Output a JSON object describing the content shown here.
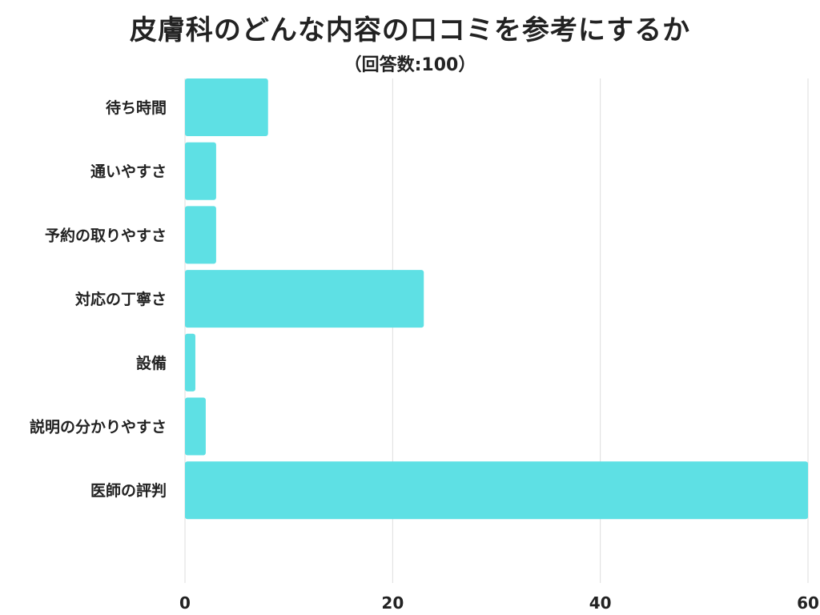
{
  "title": "皮膚科のどんな内容の口コミを参考にするか",
  "subtitle": "（回答数:100）",
  "colors": {
    "bar": "#5ee0e4",
    "grid": "#dddddd",
    "text": "#222222"
  },
  "chart_data": {
    "type": "bar",
    "orientation": "horizontal",
    "categories": [
      "待ち時間",
      "通いやすさ",
      "予約の取りやすさ",
      "対応の丁寧さ",
      "設備",
      "説明の分かりやすさ",
      "医師の評判"
    ],
    "values": [
      8,
      3,
      3,
      23,
      1,
      2,
      60
    ],
    "xlim": [
      0,
      60
    ],
    "xticks": [
      0,
      20,
      40,
      60
    ],
    "grid": true,
    "title": "皮膚科のどんな内容の口コミを参考にするか",
    "subtitle": "（回答数:100）"
  }
}
